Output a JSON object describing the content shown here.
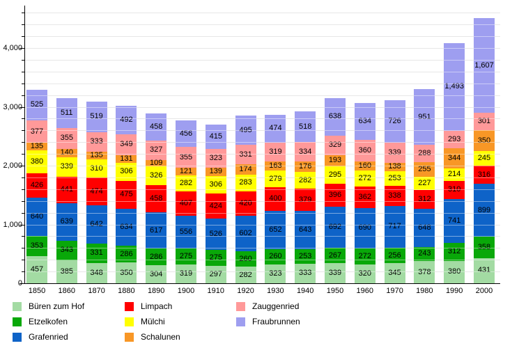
{
  "chart_data": {
    "type": "bar",
    "stacked": true,
    "title": "",
    "xlabel": "",
    "ylabel": "",
    "categories": [
      "1850",
      "1860",
      "1870",
      "1880",
      "1890",
      "1900",
      "1910",
      "1920",
      "1930",
      "1940",
      "1950",
      "1960",
      "1970",
      "1980",
      "1990",
      "2000"
    ],
    "series": [
      {
        "name": "Büren zum Hof",
        "color": "#a3dba3",
        "values": [
          457,
          385,
          348,
          350,
          304,
          319,
          297,
          282,
          323,
          333,
          339,
          320,
          345,
          378,
          380,
          431
        ]
      },
      {
        "name": "Etzelkofen",
        "color": "#09a809",
        "values": [
          353,
          343,
          331,
          286,
          286,
          275,
          275,
          260,
          260,
          253,
          267,
          272,
          256,
          243,
          312,
          358
        ]
      },
      {
        "name": "Grafenried",
        "color": "#0e63c8",
        "values": [
          640,
          639,
          642,
          634,
          617,
          556,
          526,
          602,
          652,
          643,
          692,
          690,
          717,
          648,
          741,
          899
        ]
      },
      {
        "name": "Limpach",
        "color": "#ff0000",
        "values": [
          426,
          441,
          474,
          475,
          458,
          407,
          424,
          420,
          400,
          379,
          396,
          362,
          338,
          312,
          310,
          316
        ]
      },
      {
        "name": "Mülchi",
        "color": "#ffff00",
        "values": [
          380,
          339,
          310,
          306,
          326,
          282,
          306,
          283,
          279,
          282,
          295,
          272,
          253,
          227,
          214,
          245
        ]
      },
      {
        "name": "Schalunen",
        "color": "#f89726",
        "values": [
          135,
          140,
          135,
          131,
          109,
          121,
          139,
          174,
          163,
          176,
          193,
          160,
          138,
          255,
          344,
          350
        ]
      },
      {
        "name": "Zauggenried",
        "color": "#ff9999",
        "values": [
          377,
          355,
          333,
          349,
          327,
          355,
          323,
          331,
          319,
          334,
          329,
          360,
          339,
          288,
          293,
          301
        ]
      },
      {
        "name": "Fraubrunnen",
        "color": "#9e9ef0",
        "values": [
          525,
          511,
          519,
          492,
          458,
          456,
          415,
          495,
          474,
          518,
          638,
          634,
          726,
          951,
          1493,
          1607
        ]
      }
    ],
    "ylim": [
      0,
      4700
    ],
    "y_major_ticks": [
      0,
      1000,
      2000,
      3000,
      4000
    ],
    "y_minor_step": 200,
    "grid": true,
    "grid_step": 200,
    "legend_position": "bottom",
    "legend_columns": [
      [
        "Büren zum Hof",
        "Etzelkofen",
        "Grafenried"
      ],
      [
        "Limpach",
        "Mülchi",
        "Schalunen"
      ],
      [
        "Zauggenried",
        "Fraubrunnen"
      ]
    ]
  }
}
